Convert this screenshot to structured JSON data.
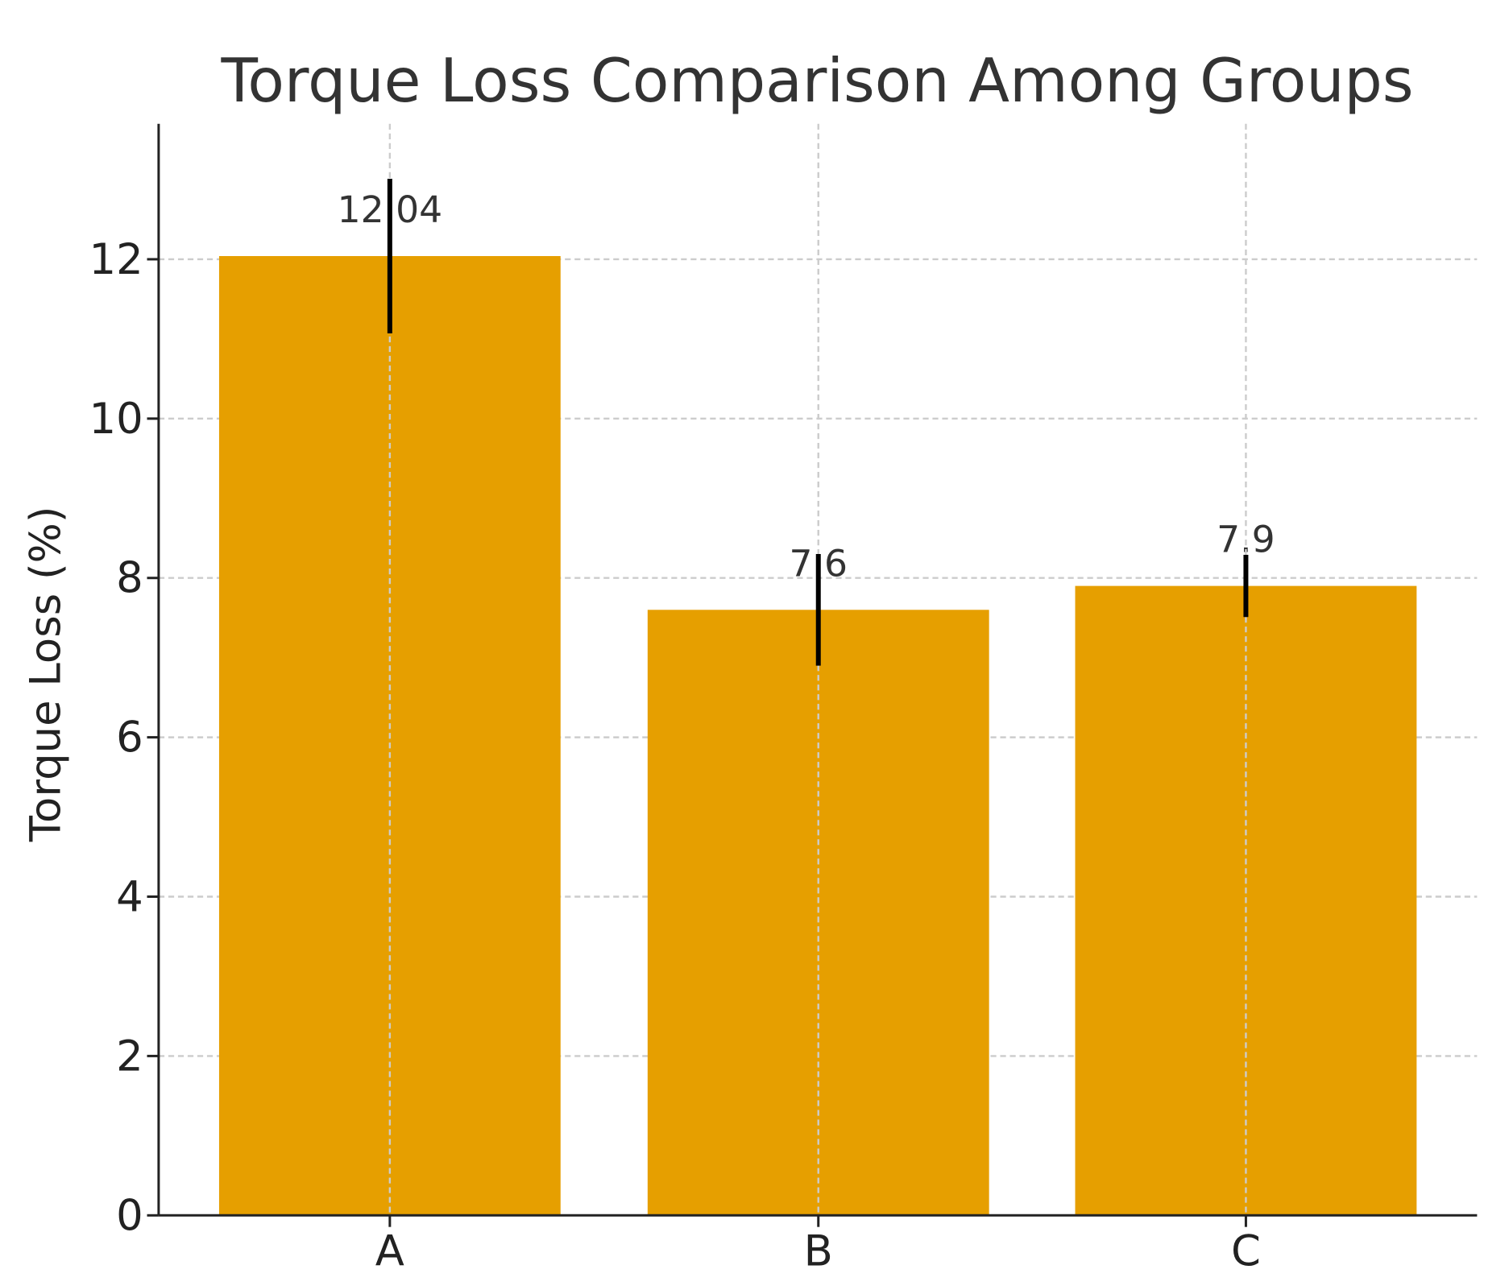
{
  "chart_data": {
    "type": "bar",
    "title": "Torque Loss Comparison Among Groups",
    "xlabel": "",
    "ylabel": "Torque Loss (%)",
    "categories": [
      "A",
      "B",
      "C"
    ],
    "values": [
      12.04,
      7.6,
      7.9
    ],
    "value_labels": [
      "12.04",
      "7.6",
      "7.9"
    ],
    "error": [
      0.97,
      0.7,
      0.39
    ],
    "ylim": [
      0,
      13.7
    ],
    "yticks": [
      0,
      2,
      4,
      6,
      8,
      10,
      12
    ],
    "grid": true,
    "bar_color": "#E69F00",
    "error_color": "#000000"
  }
}
